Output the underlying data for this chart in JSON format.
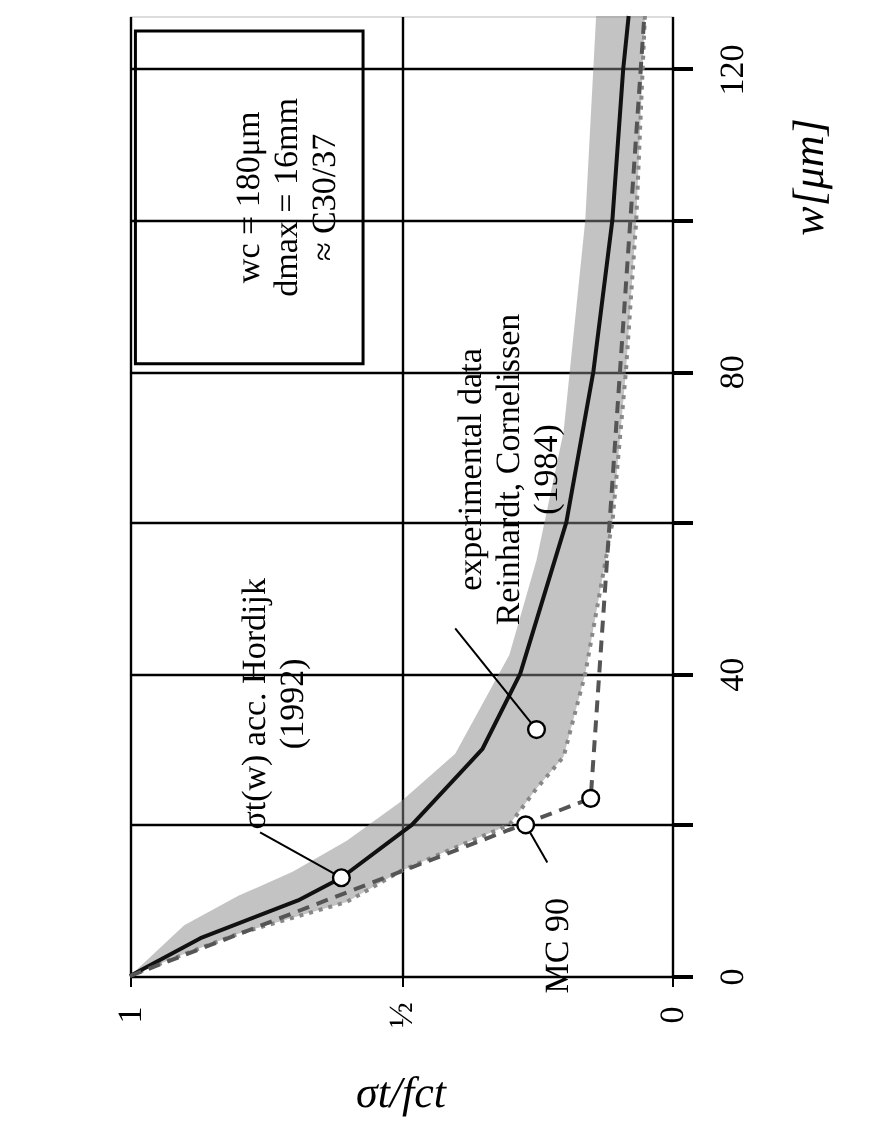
{
  "chart_data": {
    "type": "line",
    "xlabel": "σt/fct",
    "ylabel": "w[μm]",
    "series": [
      {
        "name": null,
        "color": "#888888",
        "line_style": "dotted",
        "x": [
          1,
          0.9,
          0.8,
          0.7,
          0.6,
          0.5,
          0.4,
          0.3,
          0.25,
          0.2,
          0.16,
          0.14,
          0.11,
          0.085,
          0.066,
          0.05
        ],
        "values": [
          0,
          2.9,
          5.6,
          7.7,
          9.8,
          13.9,
          17,
          20,
          24.8,
          29,
          40,
          48,
          60,
          80,
          100,
          127
        ],
        "lower": [
          0,
          2.9,
          5.6,
          7.7,
          9.8,
          13.9,
          17,
          20,
          24.8,
          29,
          40,
          48,
          60,
          80,
          100,
          127
        ],
        "upper": [
          0,
          6.7,
          10.6,
          13.8,
          17.9,
          23.1,
          29.4,
          42.5,
          55,
          72,
          100,
          127,
          127,
          127,
          127,
          127
        ]
      },
      {
        "name": null,
        "color": "#111111",
        "line_style": "solid",
        "x": [
          1,
          0.87,
          0.69,
          0.61,
          0.48,
          0.35,
          0.28,
          0.195,
          0.145,
          0.11,
          0.09,
          0.08
        ],
        "values": [
          0,
          5,
          10,
          13,
          20,
          30,
          40,
          60,
          80,
          100,
          120,
          127
        ]
      },
      {
        "name": null,
        "color": "#555555",
        "line_style": "dashed",
        "x": [
          1,
          0.15,
          0.051
        ],
        "values": [
          0,
          23.5,
          127
        ]
      },
      {
        "name": null,
        "type": "scatter",
        "color": "#ffffff",
        "marker": "circle",
        "x": [
          0.15
        ],
        "values": [
          23.5
        ]
      }
    ],
    "xlim": [
      1,
      0
    ],
    "xticks": [
      1,
      {
        "value": 0.5,
        "label": "½"
      },
      0
    ],
    "ylim": [
      0,
      127
    ],
    "yticks": [
      0,
      {
        "value": 20,
        "label": null
      },
      40,
      {
        "value": 60,
        "label": null
      },
      80,
      {
        "value": 100,
        "label": null
      },
      120
    ],
    "grid": true,
    "annotations": [
      "wc = 180μm\ndmax = 16mm\n≈ C30/37",
      {
        "text": "σt(w) acc. Hordijk\n(1992)",
        "x": 0.61,
        "y": 13
      },
      {
        "text": "experimental data\nReinhardt, Cornelissen\n(1984)",
        "x": 0.25,
        "y": 32.6
      },
      {
        "text": "MC 90",
        "x": 0.27,
        "y": 20
      }
    ]
  }
}
